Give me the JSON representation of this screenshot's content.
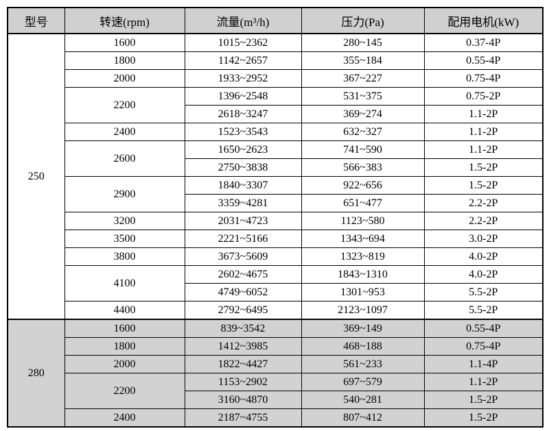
{
  "page": {
    "background": "#ffffff",
    "border_color": "#000000",
    "header_bg": "#d0d0d0",
    "group_250_bg": "#ffffff",
    "group_280_bg": "#d2d2d2"
  },
  "table": {
    "headers": [
      {
        "label": "型号"
      },
      {
        "label": "转速(rpm)"
      },
      {
        "label": "流量(m³/h)"
      },
      {
        "label": "压力(Pa)"
      },
      {
        "label": "配用电机(kW)"
      }
    ],
    "groups": [
      {
        "model": "250",
        "row_bg": "#ffffff",
        "rows": [
          {
            "speed": "1600",
            "speed_rowspan": 1,
            "flow": "1015~2362",
            "pressure": "280~145",
            "motor": "0.37-4P"
          },
          {
            "speed": "1800",
            "speed_rowspan": 1,
            "flow": "1142~2657",
            "pressure": "355~184",
            "motor": "0.55-4P"
          },
          {
            "speed": "2000",
            "speed_rowspan": 1,
            "flow": "1933~2952",
            "pressure": "367~227",
            "motor": "0.75-4P"
          },
          {
            "speed": "2200",
            "speed_rowspan": 2,
            "flow": "1396~2548",
            "pressure": "531~375",
            "motor": "0.75-2P"
          },
          {
            "speed": null,
            "speed_rowspan": 0,
            "flow": "2618~3247",
            "pressure": "369~274",
            "motor": "1.1-2P"
          },
          {
            "speed": "2400",
            "speed_rowspan": 1,
            "flow": "1523~3543",
            "pressure": "632~327",
            "motor": "1.1-2P"
          },
          {
            "speed": "2600",
            "speed_rowspan": 2,
            "flow": "1650~2623",
            "pressure": "741~590",
            "motor": "1.1-2P"
          },
          {
            "speed": null,
            "speed_rowspan": 0,
            "flow": "2750~3838",
            "pressure": "566~383",
            "motor": "1.5-2P"
          },
          {
            "speed": "2900",
            "speed_rowspan": 2,
            "flow": "1840~3307",
            "pressure": "922~656",
            "motor": "1.5-2P"
          },
          {
            "speed": null,
            "speed_rowspan": 0,
            "flow": "3359~4281",
            "pressure": "651~477",
            "motor": "2.2-2P"
          },
          {
            "speed": "3200",
            "speed_rowspan": 1,
            "flow": "2031~4723",
            "pressure": "1123~580",
            "motor": "2.2-2P"
          },
          {
            "speed": "3500",
            "speed_rowspan": 1,
            "flow": "2221~5166",
            "pressure": "1343~694",
            "motor": "3.0-2P"
          },
          {
            "speed": "3800",
            "speed_rowspan": 1,
            "flow": "3673~5609",
            "pressure": "1323~819",
            "motor": "4.0-2P"
          },
          {
            "speed": "4100",
            "speed_rowspan": 2,
            "flow": "2602~4675",
            "pressure": "1843~1310",
            "motor": "4.0-2P"
          },
          {
            "speed": null,
            "speed_rowspan": 0,
            "flow": "4749~6052",
            "pressure": "1301~953",
            "motor": "5.5-2P"
          },
          {
            "speed": "4400",
            "speed_rowspan": 1,
            "flow": "2792~6495",
            "pressure": "2123~1097",
            "motor": "5.5-2P"
          }
        ]
      },
      {
        "model": "280",
        "row_bg": "#d2d2d2",
        "rows": [
          {
            "speed": "1600",
            "speed_rowspan": 1,
            "flow": "839~3542",
            "pressure": "369~149",
            "motor": "0.55-4P"
          },
          {
            "speed": "1800",
            "speed_rowspan": 1,
            "flow": "1412~3985",
            "pressure": "468~188",
            "motor": "0.75-4P"
          },
          {
            "speed": "2000",
            "speed_rowspan": 1,
            "flow": "1822~4427",
            "pressure": "561~233",
            "motor": "1.1-4P"
          },
          {
            "speed": "2200",
            "speed_rowspan": 2,
            "flow": "1153~2902",
            "pressure": "697~579",
            "motor": "1.1-2P"
          },
          {
            "speed": null,
            "speed_rowspan": 0,
            "flow": "3160~4870",
            "pressure": "540~281",
            "motor": "1.5-2P"
          },
          {
            "speed": "2400",
            "speed_rowspan": 1,
            "flow": "2187~4755",
            "pressure": "807~412",
            "motor": "1.5-2P"
          }
        ]
      }
    ]
  }
}
